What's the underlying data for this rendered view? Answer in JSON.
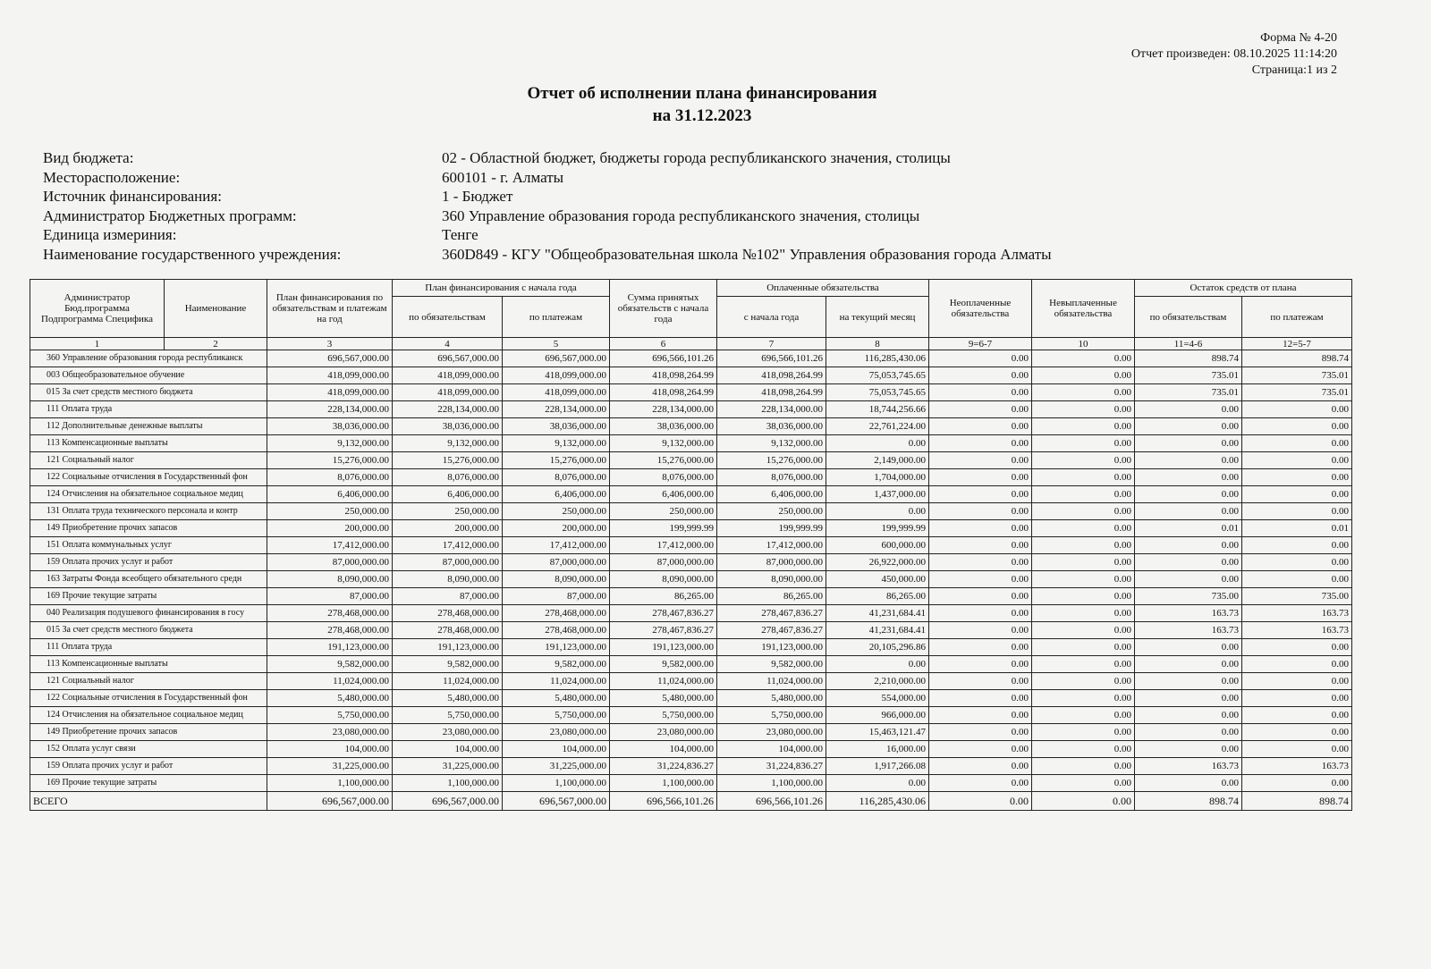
{
  "header": {
    "form": "Форма № 4-20",
    "generated": "Отчет произведен: 08.10.2025 11:14:20",
    "page": "Страница:1 из 2"
  },
  "title": {
    "line1": "Отчет об исполнении плана финансирования",
    "line2": "на 31.12.2023"
  },
  "info": [
    {
      "label": "Вид бюджета:",
      "value": "02 - Областной бюджет, бюджеты города республиканского значения, столицы"
    },
    {
      "label": "Месторасположение:",
      "value": "600101 - г. Алматы"
    },
    {
      "label": "Источник финансирования:",
      "value": "1 - Бюджет"
    },
    {
      "label": "Администратор Бюджетных программ:",
      "value": "360 Управление образования города республиканского значения, столицы"
    },
    {
      "label": "Единица измериния:",
      "value": "Тенге"
    },
    {
      "label": "Наименование государственного учреждения:",
      "value": "360D849 - КГУ \"Общеобразовательная школа №102\" Управления образования города Алматы"
    }
  ],
  "table": {
    "columns": {
      "admin": "Администратор Бюд.программа Подпрограмма Специфика",
      "name": "Наименование",
      "plan_year": "План финансирования по обязательствам и платежам на год",
      "plan_group": "План финансирования с начала года",
      "plan_oblig": "по обязательствам",
      "plan_pay": "по платежам",
      "accepted": "Сумма принятых обязательств с начала года",
      "paid_group": "Оплаченные обязательства",
      "paid_start": "с начала года",
      "paid_month": "на текущий месяц",
      "unpaid": "Неоплаченные обязательства",
      "unpaid2": "Невыплаченные обязательства",
      "rest_group": "Остаток средств от плана",
      "rest_oblig": "по обязательствам",
      "rest_pay": "по платежам"
    },
    "numbers": [
      "1",
      "2",
      "3",
      "4",
      "5",
      "6",
      "7",
      "8",
      "9=6-7",
      "10",
      "11=4-6",
      "12=5-7"
    ],
    "rows": [
      [
        "360 Управление образования города республиканск",
        "696,567,000.00",
        "696,567,000.00",
        "696,567,000.00",
        "696,566,101.26",
        "696,566,101.26",
        "116,285,430.06",
        "0.00",
        "0.00",
        "898.74",
        "898.74"
      ],
      [
        "003 Общеобразовательное обучение",
        "418,099,000.00",
        "418,099,000.00",
        "418,099,000.00",
        "418,098,264.99",
        "418,098,264.99",
        "75,053,745.65",
        "0.00",
        "0.00",
        "735.01",
        "735.01"
      ],
      [
        "015 За счет средств местного бюджета",
        "418,099,000.00",
        "418,099,000.00",
        "418,099,000.00",
        "418,098,264.99",
        "418,098,264.99",
        "75,053,745.65",
        "0.00",
        "0.00",
        "735.01",
        "735.01"
      ],
      [
        "111 Оплата труда",
        "228,134,000.00",
        "228,134,000.00",
        "228,134,000.00",
        "228,134,000.00",
        "228,134,000.00",
        "18,744,256.66",
        "0.00",
        "0.00",
        "0.00",
        "0.00"
      ],
      [
        "112 Дополнительные денежные выплаты",
        "38,036,000.00",
        "38,036,000.00",
        "38,036,000.00",
        "38,036,000.00",
        "38,036,000.00",
        "22,761,224.00",
        "0.00",
        "0.00",
        "0.00",
        "0.00"
      ],
      [
        "113 Компенсационные выплаты",
        "9,132,000.00",
        "9,132,000.00",
        "9,132,000.00",
        "9,132,000.00",
        "9,132,000.00",
        "0.00",
        "0.00",
        "0.00",
        "0.00",
        "0.00"
      ],
      [
        "121 Социальный налог",
        "15,276,000.00",
        "15,276,000.00",
        "15,276,000.00",
        "15,276,000.00",
        "15,276,000.00",
        "2,149,000.00",
        "0.00",
        "0.00",
        "0.00",
        "0.00"
      ],
      [
        "122 Социальные отчисления в Государственный фон",
        "8,076,000.00",
        "8,076,000.00",
        "8,076,000.00",
        "8,076,000.00",
        "8,076,000.00",
        "1,704,000.00",
        "0.00",
        "0.00",
        "0.00",
        "0.00"
      ],
      [
        "124 Отчисления на обязательное социальное медиц",
        "6,406,000.00",
        "6,406,000.00",
        "6,406,000.00",
        "6,406,000.00",
        "6,406,000.00",
        "1,437,000.00",
        "0.00",
        "0.00",
        "0.00",
        "0.00"
      ],
      [
        "131 Оплата труда технического персонала и контр",
        "250,000.00",
        "250,000.00",
        "250,000.00",
        "250,000.00",
        "250,000.00",
        "0.00",
        "0.00",
        "0.00",
        "0.00",
        "0.00"
      ],
      [
        "149 Приобретение прочих запасов",
        "200,000.00",
        "200,000.00",
        "200,000.00",
        "199,999.99",
        "199,999.99",
        "199,999.99",
        "0.00",
        "0.00",
        "0.01",
        "0.01"
      ],
      [
        "151 Оплата коммунальных услуг",
        "17,412,000.00",
        "17,412,000.00",
        "17,412,000.00",
        "17,412,000.00",
        "17,412,000.00",
        "600,000.00",
        "0.00",
        "0.00",
        "0.00",
        "0.00"
      ],
      [
        "159 Оплата прочих услуг и работ",
        "87,000,000.00",
        "87,000,000.00",
        "87,000,000.00",
        "87,000,000.00",
        "87,000,000.00",
        "26,922,000.00",
        "0.00",
        "0.00",
        "0.00",
        "0.00"
      ],
      [
        "163 Затраты Фонда всеобщего обязательного средн",
        "8,090,000.00",
        "8,090,000.00",
        "8,090,000.00",
        "8,090,000.00",
        "8,090,000.00",
        "450,000.00",
        "0.00",
        "0.00",
        "0.00",
        "0.00"
      ],
      [
        "169 Прочие текущие затраты",
        "87,000.00",
        "87,000.00",
        "87,000.00",
        "86,265.00",
        "86,265.00",
        "86,265.00",
        "0.00",
        "0.00",
        "735.00",
        "735.00"
      ],
      [
        "040 Реализация подушевого финансирования в госу",
        "278,468,000.00",
        "278,468,000.00",
        "278,468,000.00",
        "278,467,836.27",
        "278,467,836.27",
        "41,231,684.41",
        "0.00",
        "0.00",
        "163.73",
        "163.73"
      ],
      [
        "015 За счет средств местного бюджета",
        "278,468,000.00",
        "278,468,000.00",
        "278,468,000.00",
        "278,467,836.27",
        "278,467,836.27",
        "41,231,684.41",
        "0.00",
        "0.00",
        "163.73",
        "163.73"
      ],
      [
        "111 Оплата труда",
        "191,123,000.00",
        "191,123,000.00",
        "191,123,000.00",
        "191,123,000.00",
        "191,123,000.00",
        "20,105,296.86",
        "0.00",
        "0.00",
        "0.00",
        "0.00"
      ],
      [
        "113 Компенсационные выплаты",
        "9,582,000.00",
        "9,582,000.00",
        "9,582,000.00",
        "9,582,000.00",
        "9,582,000.00",
        "0.00",
        "0.00",
        "0.00",
        "0.00",
        "0.00"
      ],
      [
        "121 Социальный налог",
        "11,024,000.00",
        "11,024,000.00",
        "11,024,000.00",
        "11,024,000.00",
        "11,024,000.00",
        "2,210,000.00",
        "0.00",
        "0.00",
        "0.00",
        "0.00"
      ],
      [
        "122 Социальные отчисления в Государственный фон",
        "5,480,000.00",
        "5,480,000.00",
        "5,480,000.00",
        "5,480,000.00",
        "5,480,000.00",
        "554,000.00",
        "0.00",
        "0.00",
        "0.00",
        "0.00"
      ],
      [
        "124 Отчисления на обязательное социальное медиц",
        "5,750,000.00",
        "5,750,000.00",
        "5,750,000.00",
        "5,750,000.00",
        "5,750,000.00",
        "966,000.00",
        "0.00",
        "0.00",
        "0.00",
        "0.00"
      ],
      [
        "149 Приобретение прочих запасов",
        "23,080,000.00",
        "23,080,000.00",
        "23,080,000.00",
        "23,080,000.00",
        "23,080,000.00",
        "15,463,121.47",
        "0.00",
        "0.00",
        "0.00",
        "0.00"
      ],
      [
        "152 Оплата услуг связи",
        "104,000.00",
        "104,000.00",
        "104,000.00",
        "104,000.00",
        "104,000.00",
        "16,000.00",
        "0.00",
        "0.00",
        "0.00",
        "0.00"
      ],
      [
        "159 Оплата прочих услуг и работ",
        "31,225,000.00",
        "31,225,000.00",
        "31,225,000.00",
        "31,224,836.27",
        "31,224,836.27",
        "1,917,266.08",
        "0.00",
        "0.00",
        "163.73",
        "163.73"
      ],
      [
        "169 Прочие текущие затраты",
        "1,100,000.00",
        "1,100,000.00",
        "1,100,000.00",
        "1,100,000.00",
        "1,100,000.00",
        "0.00",
        "0.00",
        "0.00",
        "0.00",
        "0.00"
      ]
    ],
    "total": {
      "label": "ВСЕГО",
      "values": [
        "696,567,000.00",
        "696,567,000.00",
        "696,567,000.00",
        "696,566,101.26",
        "696,566,101.26",
        "116,285,430.06",
        "0.00",
        "0.00",
        "898.74",
        "898.74"
      ]
    }
  }
}
